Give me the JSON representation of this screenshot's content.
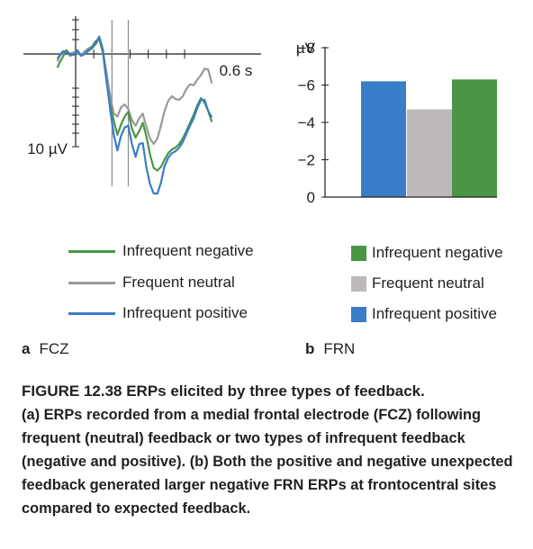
{
  "colors": {
    "infrequent_negative": "#4a9645",
    "frequent_neutral": "#999999",
    "infrequent_positive": "#3a7dc8",
    "axis": "#231f20",
    "marker": "#8c8c8c"
  },
  "chart_data": [
    {
      "type": "line",
      "panel": "a",
      "xlabel": "",
      "ylabel": "",
      "x_tick_label": "0.6 s",
      "y_scale_label": "10 µV",
      "y_inverted": true,
      "xlim": [
        -0.1,
        0.75
      ],
      "ylim": [
        -6,
        14
      ],
      "series": [
        {
          "name": "Infrequent negative",
          "color": "#4a9645",
          "x": [
            -0.1,
            -0.09,
            -0.07,
            -0.05,
            -0.03,
            -0.01,
            0.01,
            0.03,
            0.05,
            0.07,
            0.09,
            0.11,
            0.13,
            0.15,
            0.17,
            0.19,
            0.21,
            0.23,
            0.25,
            0.27,
            0.29,
            0.31,
            0.33,
            0.35,
            0.37,
            0.39,
            0.41,
            0.43,
            0.45,
            0.47,
            0.49,
            0.51,
            0.53,
            0.55,
            0.57,
            0.59,
            0.61,
            0.63,
            0.65,
            0.67,
            0.69,
            0.71,
            0.73,
            0.75
          ],
          "values": [
            1.5,
            1.0,
            0.3,
            -0.4,
            0.2,
            0.0,
            -0.3,
            0.2,
            0.0,
            -0.3,
            -0.8,
            -1.4,
            -1.6,
            -0.2,
            3.0,
            5.5,
            7.3,
            8.8,
            7.7,
            6.8,
            6.3,
            8.1,
            9.1,
            8.4,
            7.5,
            9.0,
            11.0,
            12.4,
            12.7,
            12.3,
            11.5,
            10.8,
            10.4,
            10.2,
            9.8,
            9.2,
            8.4,
            7.5,
            6.6,
            5.6,
            4.8,
            5.3,
            6.2,
            7.4
          ]
        },
        {
          "name": "Frequent neutral",
          "color": "#999999",
          "x": [
            -0.1,
            -0.09,
            -0.07,
            -0.05,
            -0.03,
            -0.01,
            0.01,
            0.03,
            0.05,
            0.07,
            0.09,
            0.11,
            0.13,
            0.15,
            0.17,
            0.19,
            0.21,
            0.23,
            0.25,
            0.27,
            0.29,
            0.31,
            0.33,
            0.35,
            0.37,
            0.39,
            0.41,
            0.43,
            0.45,
            0.47,
            0.49,
            0.51,
            0.53,
            0.55,
            0.57,
            0.59,
            0.61,
            0.63,
            0.65,
            0.67,
            0.69,
            0.71,
            0.73,
            0.75
          ],
          "values": [
            0.8,
            0.3,
            -0.2,
            -0.4,
            0.0,
            -0.2,
            -0.1,
            0.1,
            -0.3,
            -0.6,
            -0.8,
            -1.0,
            -1.8,
            -0.2,
            2.0,
            4.5,
            6.5,
            6.8,
            5.8,
            5.5,
            6.0,
            7.2,
            7.8,
            7.0,
            6.5,
            8.0,
            9.2,
            9.8,
            9.2,
            7.8,
            6.2,
            5.1,
            4.6,
            4.9,
            5.0,
            4.6,
            3.8,
            3.3,
            3.4,
            2.8,
            2.3,
            1.6,
            1.7,
            3.2
          ]
        },
        {
          "name": "Infrequent positive",
          "color": "#3a7dc8",
          "x": [
            -0.1,
            -0.09,
            -0.07,
            -0.05,
            -0.03,
            -0.01,
            0.01,
            0.03,
            0.05,
            0.07,
            0.09,
            0.11,
            0.13,
            0.15,
            0.17,
            0.19,
            0.21,
            0.23,
            0.25,
            0.27,
            0.29,
            0.31,
            0.33,
            0.35,
            0.37,
            0.39,
            0.41,
            0.43,
            0.45,
            0.47,
            0.49,
            0.51,
            0.53,
            0.55,
            0.57,
            0.59,
            0.61,
            0.63,
            0.65,
            0.67,
            0.69,
            0.71,
            0.73,
            0.75
          ],
          "values": [
            0.5,
            0.2,
            -0.3,
            -0.2,
            0.0,
            0.1,
            -0.4,
            0.2,
            0.0,
            -0.4,
            -0.6,
            -1.2,
            -1.9,
            -0.5,
            2.8,
            6.0,
            8.8,
            10.5,
            8.9,
            8.0,
            7.8,
            9.8,
            11.2,
            9.8,
            9.7,
            12.4,
            14.2,
            15.2,
            15.2,
            14.0,
            12.2,
            11.3,
            10.8,
            10.6,
            10.2,
            9.6,
            8.7,
            7.8,
            7.0,
            5.9,
            5.0,
            5.0,
            6.2,
            6.9
          ]
        }
      ],
      "vertical_markers_s": [
        0.2,
        0.29
      ]
    },
    {
      "type": "bar",
      "panel": "b",
      "ylabel": "µV",
      "y_inverted": true,
      "ylim": [
        0,
        -8
      ],
      "y_ticks": [
        "−8",
        "−6",
        "−4",
        "−2",
        "0"
      ],
      "y_tick_values": [
        -8,
        -6,
        -4,
        -2,
        0
      ],
      "categories": [
        "Infrequent positive",
        "Frequent neutral",
        "Infrequent negative"
      ],
      "values": [
        -6.2,
        -4.7,
        -6.3
      ],
      "colors": [
        "#3a7dc8",
        "#bdb8bb",
        "#4a9645"
      ]
    }
  ],
  "legend_a": [
    {
      "label": "Infrequent negative",
      "color": "#4a9645"
    },
    {
      "label": "Frequent neutral",
      "color": "#999999"
    },
    {
      "label": "Infrequent positive",
      "color": "#3a7dc8"
    }
  ],
  "legend_b": [
    {
      "label": "Infrequent negative",
      "color": "#4a9645"
    },
    {
      "label": "Frequent neutral",
      "color": "#bdb8bb"
    },
    {
      "label": "Infrequent positive",
      "color": "#3a7dc8"
    }
  ],
  "panel_labels": {
    "a_letter": "a",
    "a_text": "FCZ",
    "b_letter": "b",
    "b_text": "FRN"
  },
  "caption": {
    "title": "FIGURE 12.38 ERPs elicited by three types of feedback.",
    "body_a_tag": "(a)",
    "body_a": " ERPs recorded from a medial frontal electrode (FCZ) following frequent (neutral) feedback or two types of infrequent feedback (negative and positive). ",
    "body_b_tag": "(b)",
    "body_b": " Both the positive and negative unexpected feedback generated larger negative FRN ERPs at frontocentral sites compared to expected feedback."
  }
}
